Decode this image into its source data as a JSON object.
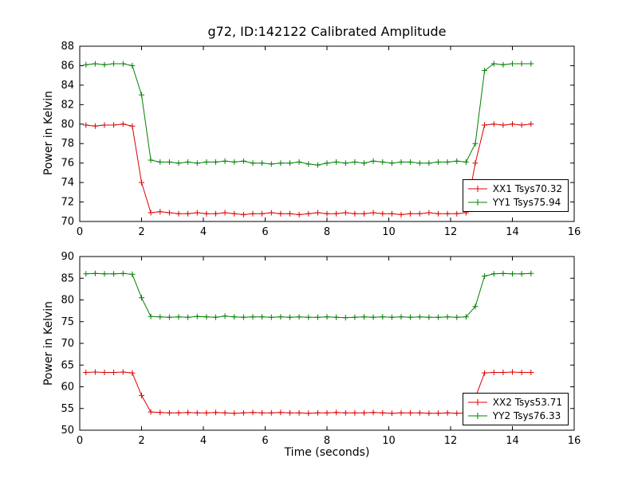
{
  "figure": {
    "title": "g72, ID:142122 Calibrated Amplitude",
    "background": "#ffffff",
    "axis_color": "#000000"
  },
  "chart_data": [
    {
      "type": "line",
      "title": "g72, ID:142122 Calibrated Amplitude",
      "xlabel": "",
      "ylabel": "Power in Kelvin",
      "xlim": [
        0,
        16
      ],
      "ylim": [
        70,
        88
      ],
      "xticks": [
        0,
        2,
        4,
        6,
        8,
        10,
        12,
        14,
        16
      ],
      "yticks": [
        70,
        72,
        74,
        76,
        78,
        80,
        82,
        84,
        86,
        88
      ],
      "grid": false,
      "legend_position": "lower right",
      "marker": "+",
      "x": [
        0.2,
        0.5,
        0.8,
        1.1,
        1.4,
        1.7,
        2.0,
        2.3,
        2.6,
        2.9,
        3.2,
        3.5,
        3.8,
        4.1,
        4.4,
        4.7,
        5.0,
        5.3,
        5.6,
        5.9,
        6.2,
        6.5,
        6.8,
        7.1,
        7.4,
        7.7,
        8.0,
        8.3,
        8.6,
        8.9,
        9.2,
        9.5,
        9.8,
        10.1,
        10.4,
        10.7,
        11.0,
        11.3,
        11.6,
        11.9,
        12.2,
        12.5,
        12.8,
        13.1,
        13.4,
        13.7,
        14.0,
        14.3,
        14.6
      ],
      "series": [
        {
          "name": "XX1 Tsys70.32",
          "color": "#dd0000",
          "values": [
            79.9,
            79.8,
            79.9,
            79.9,
            80.0,
            79.8,
            74.0,
            70.9,
            71.0,
            70.9,
            70.8,
            70.8,
            70.9,
            70.8,
            70.8,
            70.9,
            70.8,
            70.7,
            70.8,
            70.8,
            70.9,
            70.8,
            70.8,
            70.7,
            70.8,
            70.9,
            70.8,
            70.8,
            70.9,
            70.8,
            70.8,
            70.9,
            70.8,
            70.8,
            70.7,
            70.8,
            70.8,
            70.9,
            70.8,
            70.8,
            70.8,
            70.9,
            76.0,
            79.9,
            80.0,
            79.9,
            80.0,
            79.9,
            80.0
          ]
        },
        {
          "name": "YY1 Tsys75.94",
          "color": "#008000",
          "values": [
            86.1,
            86.2,
            86.1,
            86.2,
            86.2,
            86.0,
            83.0,
            76.3,
            76.1,
            76.1,
            76.0,
            76.1,
            76.0,
            76.1,
            76.1,
            76.2,
            76.1,
            76.2,
            76.0,
            76.0,
            75.9,
            76.0,
            76.0,
            76.1,
            75.9,
            75.8,
            76.0,
            76.1,
            76.0,
            76.1,
            76.0,
            76.2,
            76.1,
            76.0,
            76.1,
            76.1,
            76.0,
            76.0,
            76.1,
            76.1,
            76.2,
            76.1,
            78.0,
            85.5,
            86.2,
            86.1,
            86.2,
            86.2,
            86.2
          ]
        }
      ]
    },
    {
      "type": "line",
      "title": "",
      "xlabel": "Time (seconds)",
      "ylabel": "Power in Kelvin",
      "xlim": [
        0,
        16
      ],
      "ylim": [
        50,
        90
      ],
      "xticks": [
        0,
        2,
        4,
        6,
        8,
        10,
        12,
        14,
        16
      ],
      "yticks": [
        50,
        55,
        60,
        65,
        70,
        75,
        80,
        85,
        90
      ],
      "grid": false,
      "legend_position": "lower right",
      "marker": "+",
      "x": [
        0.2,
        0.5,
        0.8,
        1.1,
        1.4,
        1.7,
        2.0,
        2.3,
        2.6,
        2.9,
        3.2,
        3.5,
        3.8,
        4.1,
        4.4,
        4.7,
        5.0,
        5.3,
        5.6,
        5.9,
        6.2,
        6.5,
        6.8,
        7.1,
        7.4,
        7.7,
        8.0,
        8.3,
        8.6,
        8.9,
        9.2,
        9.5,
        9.8,
        10.1,
        10.4,
        10.7,
        11.0,
        11.3,
        11.6,
        11.9,
        12.2,
        12.5,
        12.8,
        13.1,
        13.4,
        13.7,
        14.0,
        14.3,
        14.6
      ],
      "series": [
        {
          "name": "XX2 Tsys53.71",
          "color": "#dd0000",
          "values": [
            63.3,
            63.4,
            63.3,
            63.3,
            63.4,
            63.2,
            58.0,
            54.2,
            54.1,
            54.0,
            54.0,
            54.1,
            54.0,
            54.0,
            54.1,
            54.0,
            53.9,
            54.0,
            54.1,
            54.0,
            54.0,
            54.1,
            54.0,
            54.0,
            53.9,
            54.0,
            54.0,
            54.1,
            54.0,
            54.0,
            54.0,
            54.1,
            54.0,
            53.9,
            54.0,
            54.0,
            54.0,
            53.9,
            53.9,
            54.0,
            53.9,
            54.0,
            57.5,
            63.2,
            63.3,
            63.3,
            63.4,
            63.3,
            63.3
          ]
        },
        {
          "name": "YY2 Tsys76.33",
          "color": "#008000",
          "values": [
            86.0,
            86.1,
            86.0,
            86.0,
            86.1,
            85.9,
            80.5,
            76.2,
            76.1,
            76.0,
            76.1,
            76.0,
            76.2,
            76.1,
            76.0,
            76.3,
            76.1,
            76.0,
            76.1,
            76.1,
            76.0,
            76.1,
            76.0,
            76.1,
            76.0,
            76.0,
            76.1,
            76.0,
            75.9,
            76.0,
            76.1,
            76.0,
            76.1,
            76.0,
            76.1,
            76.0,
            76.1,
            76.0,
            76.0,
            76.1,
            76.0,
            76.1,
            78.5,
            85.5,
            86.0,
            86.1,
            86.0,
            86.0,
            86.1
          ]
        }
      ]
    }
  ]
}
